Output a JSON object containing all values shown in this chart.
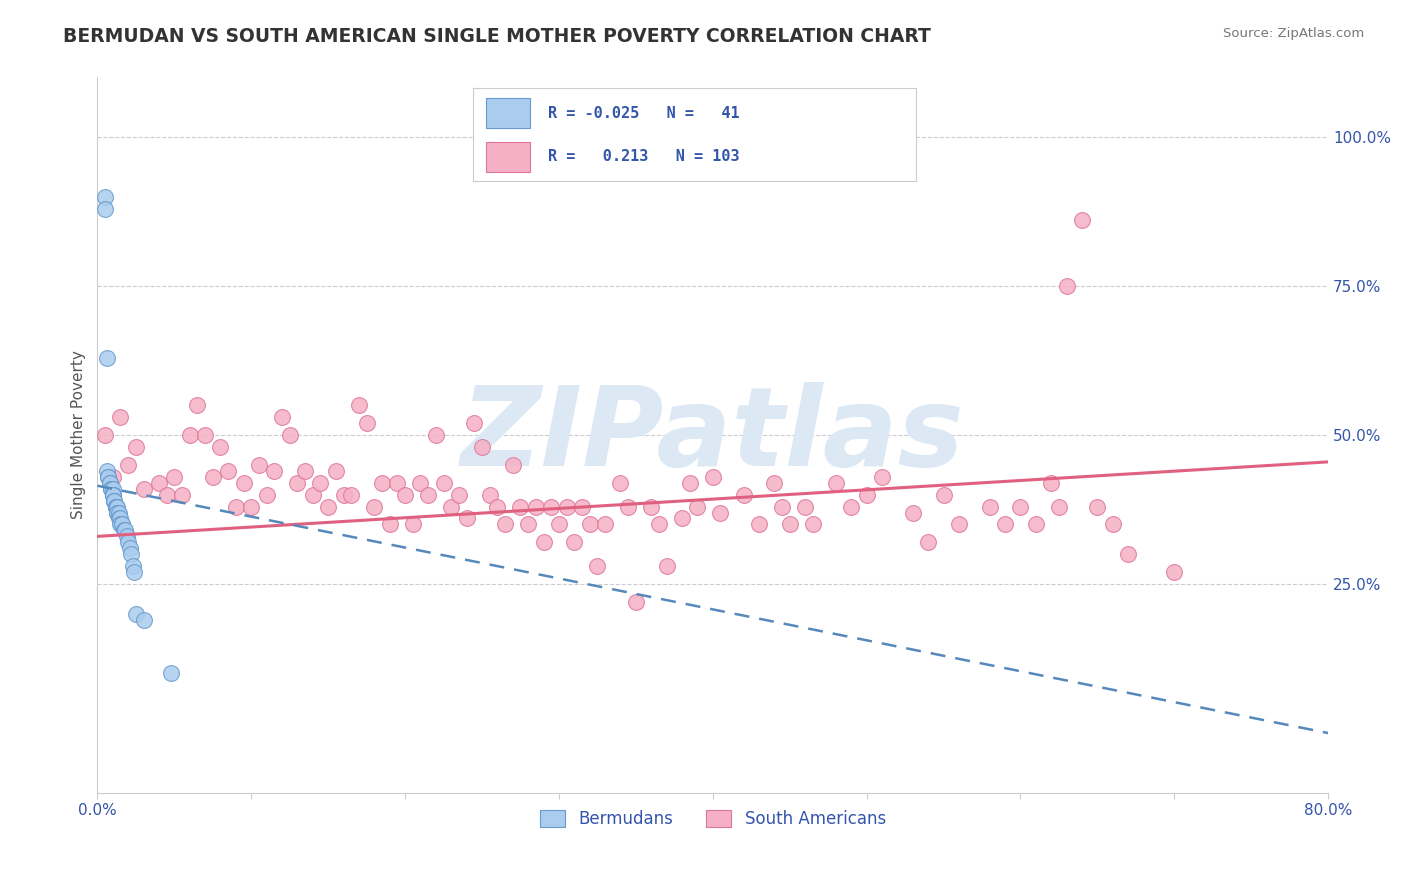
{
  "title": "BERMUDAN VS SOUTH AMERICAN SINGLE MOTHER POVERTY CORRELATION CHART",
  "source": "Source: ZipAtlas.com",
  "ylabel": "Single Mother Poverty",
  "xlim": [
    0.0,
    0.8
  ],
  "ylim": [
    -0.1,
    1.1
  ],
  "bermudan_R": -0.025,
  "bermudan_N": 41,
  "south_american_R": 0.213,
  "south_american_N": 103,
  "bermudan_color": "#aaccee",
  "bermudan_edge_color": "#6699cc",
  "south_american_color": "#f5b0c5",
  "south_american_edge_color": "#dd7799",
  "bermudan_line_color": "#5588bb",
  "south_american_line_color": "#e06080",
  "grid_color": "#cccccc",
  "title_color": "#333333",
  "legend_text_color": "#3355aa",
  "watermark_color": "#dde8f5",
  "background_color": "#ffffff",
  "bermudan_x": [
    0.005,
    0.005,
    0.006,
    0.006,
    0.007,
    0.007,
    0.008,
    0.008,
    0.009,
    0.009,
    0.01,
    0.01,
    0.01,
    0.01,
    0.01,
    0.011,
    0.011,
    0.011,
    0.012,
    0.012,
    0.012,
    0.013,
    0.013,
    0.013,
    0.014,
    0.014,
    0.015,
    0.015,
    0.016,
    0.016,
    0.017,
    0.018,
    0.019,
    0.02,
    0.021,
    0.022,
    0.023,
    0.024,
    0.025,
    0.03,
    0.048
  ],
  "bermudan_y": [
    0.9,
    0.88,
    0.63,
    0.44,
    0.43,
    0.43,
    0.42,
    0.42,
    0.41,
    0.41,
    0.41,
    0.4,
    0.4,
    0.4,
    0.4,
    0.39,
    0.39,
    0.39,
    0.38,
    0.38,
    0.38,
    0.38,
    0.37,
    0.37,
    0.37,
    0.36,
    0.36,
    0.35,
    0.35,
    0.35,
    0.34,
    0.34,
    0.33,
    0.32,
    0.31,
    0.3,
    0.28,
    0.27,
    0.2,
    0.19,
    0.1
  ],
  "sa_line_x0": 0.0,
  "sa_line_y0": 0.33,
  "sa_line_x1": 0.8,
  "sa_line_y1": 0.455,
  "b_line_x0": 0.0,
  "b_line_y0": 0.415,
  "b_line_x1": 0.8,
  "b_line_y1": 0.0,
  "south_american_points": [
    [
      0.005,
      0.5
    ],
    [
      0.01,
      0.43
    ],
    [
      0.015,
      0.53
    ],
    [
      0.02,
      0.45
    ],
    [
      0.025,
      0.48
    ],
    [
      0.03,
      0.41
    ],
    [
      0.04,
      0.42
    ],
    [
      0.045,
      0.4
    ],
    [
      0.05,
      0.43
    ],
    [
      0.055,
      0.4
    ],
    [
      0.06,
      0.5
    ],
    [
      0.065,
      0.55
    ],
    [
      0.07,
      0.5
    ],
    [
      0.075,
      0.43
    ],
    [
      0.08,
      0.48
    ],
    [
      0.085,
      0.44
    ],
    [
      0.09,
      0.38
    ],
    [
      0.095,
      0.42
    ],
    [
      0.1,
      0.38
    ],
    [
      0.105,
      0.45
    ],
    [
      0.11,
      0.4
    ],
    [
      0.115,
      0.44
    ],
    [
      0.12,
      0.53
    ],
    [
      0.125,
      0.5
    ],
    [
      0.13,
      0.42
    ],
    [
      0.135,
      0.44
    ],
    [
      0.14,
      0.4
    ],
    [
      0.145,
      0.42
    ],
    [
      0.15,
      0.38
    ],
    [
      0.155,
      0.44
    ],
    [
      0.16,
      0.4
    ],
    [
      0.165,
      0.4
    ],
    [
      0.17,
      0.55
    ],
    [
      0.175,
      0.52
    ],
    [
      0.18,
      0.38
    ],
    [
      0.185,
      0.42
    ],
    [
      0.19,
      0.35
    ],
    [
      0.195,
      0.42
    ],
    [
      0.2,
      0.4
    ],
    [
      0.205,
      0.35
    ],
    [
      0.21,
      0.42
    ],
    [
      0.215,
      0.4
    ],
    [
      0.22,
      0.5
    ],
    [
      0.225,
      0.42
    ],
    [
      0.23,
      0.38
    ],
    [
      0.235,
      0.4
    ],
    [
      0.24,
      0.36
    ],
    [
      0.245,
      0.52
    ],
    [
      0.25,
      0.48
    ],
    [
      0.255,
      0.4
    ],
    [
      0.26,
      0.38
    ],
    [
      0.265,
      0.35
    ],
    [
      0.27,
      0.45
    ],
    [
      0.275,
      0.38
    ],
    [
      0.28,
      0.35
    ],
    [
      0.285,
      0.38
    ],
    [
      0.29,
      0.32
    ],
    [
      0.295,
      0.38
    ],
    [
      0.3,
      0.35
    ],
    [
      0.305,
      0.38
    ],
    [
      0.31,
      0.32
    ],
    [
      0.315,
      0.38
    ],
    [
      0.32,
      0.35
    ],
    [
      0.325,
      0.28
    ],
    [
      0.33,
      0.35
    ],
    [
      0.34,
      0.42
    ],
    [
      0.345,
      0.38
    ],
    [
      0.35,
      0.22
    ],
    [
      0.36,
      0.38
    ],
    [
      0.365,
      0.35
    ],
    [
      0.37,
      0.28
    ],
    [
      0.38,
      0.36
    ],
    [
      0.385,
      0.42
    ],
    [
      0.39,
      0.38
    ],
    [
      0.4,
      0.43
    ],
    [
      0.405,
      0.37
    ],
    [
      0.42,
      0.4
    ],
    [
      0.43,
      0.35
    ],
    [
      0.44,
      0.42
    ],
    [
      0.445,
      0.38
    ],
    [
      0.45,
      0.35
    ],
    [
      0.46,
      0.38
    ],
    [
      0.465,
      0.35
    ],
    [
      0.48,
      0.42
    ],
    [
      0.49,
      0.38
    ],
    [
      0.5,
      0.4
    ],
    [
      0.51,
      0.43
    ],
    [
      0.53,
      0.37
    ],
    [
      0.54,
      0.32
    ],
    [
      0.55,
      0.4
    ],
    [
      0.56,
      0.35
    ],
    [
      0.58,
      0.38
    ],
    [
      0.59,
      0.35
    ],
    [
      0.6,
      0.38
    ],
    [
      0.61,
      0.35
    ],
    [
      0.62,
      0.42
    ],
    [
      0.625,
      0.38
    ],
    [
      0.63,
      0.75
    ],
    [
      0.64,
      0.86
    ],
    [
      0.65,
      0.38
    ],
    [
      0.66,
      0.35
    ],
    [
      0.67,
      0.3
    ],
    [
      0.7,
      0.27
    ]
  ]
}
